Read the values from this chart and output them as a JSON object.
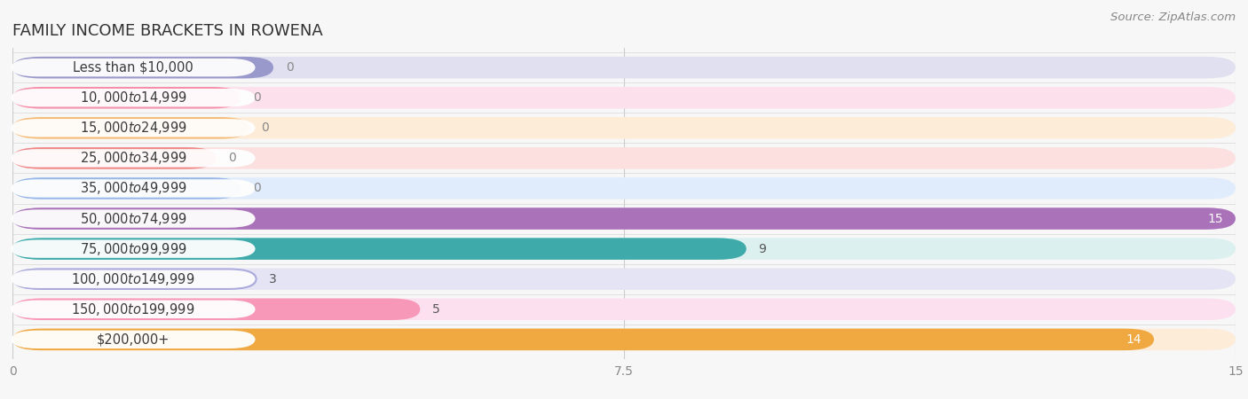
{
  "title": "FAMILY INCOME BRACKETS IN ROWENA",
  "source": "Source: ZipAtlas.com",
  "categories": [
    "Less than $10,000",
    "$10,000 to $14,999",
    "$15,000 to $24,999",
    "$25,000 to $34,999",
    "$35,000 to $49,999",
    "$50,000 to $74,999",
    "$75,000 to $99,999",
    "$100,000 to $149,999",
    "$150,000 to $199,999",
    "$200,000+"
  ],
  "values": [
    0,
    0,
    0,
    0,
    0,
    15,
    9,
    3,
    5,
    14
  ],
  "bar_colors": [
    "#9999cc",
    "#f490aa",
    "#f5bc78",
    "#f08888",
    "#99b8e8",
    "#aa72b8",
    "#3eaaaa",
    "#aaaadd",
    "#f898b8",
    "#f0a840"
  ],
  "bar_bg_colors": [
    "#e0e0f0",
    "#fce0ec",
    "#fdecd8",
    "#fce0e0",
    "#e0ecfc",
    "#ecdcf4",
    "#dcf0f0",
    "#e4e4f4",
    "#fde0f0",
    "#fdecd8"
  ],
  "zero_bar_widths": [
    3.2,
    2.8,
    2.9,
    2.5,
    2.8,
    0,
    0,
    0,
    0,
    0
  ],
  "xlim": [
    0,
    15
  ],
  "xticks": [
    0,
    7.5,
    15
  ],
  "background_color": "#f7f7f7",
  "title_fontsize": 13,
  "label_fontsize": 10.5,
  "value_fontsize": 10,
  "source_fontsize": 9.5
}
